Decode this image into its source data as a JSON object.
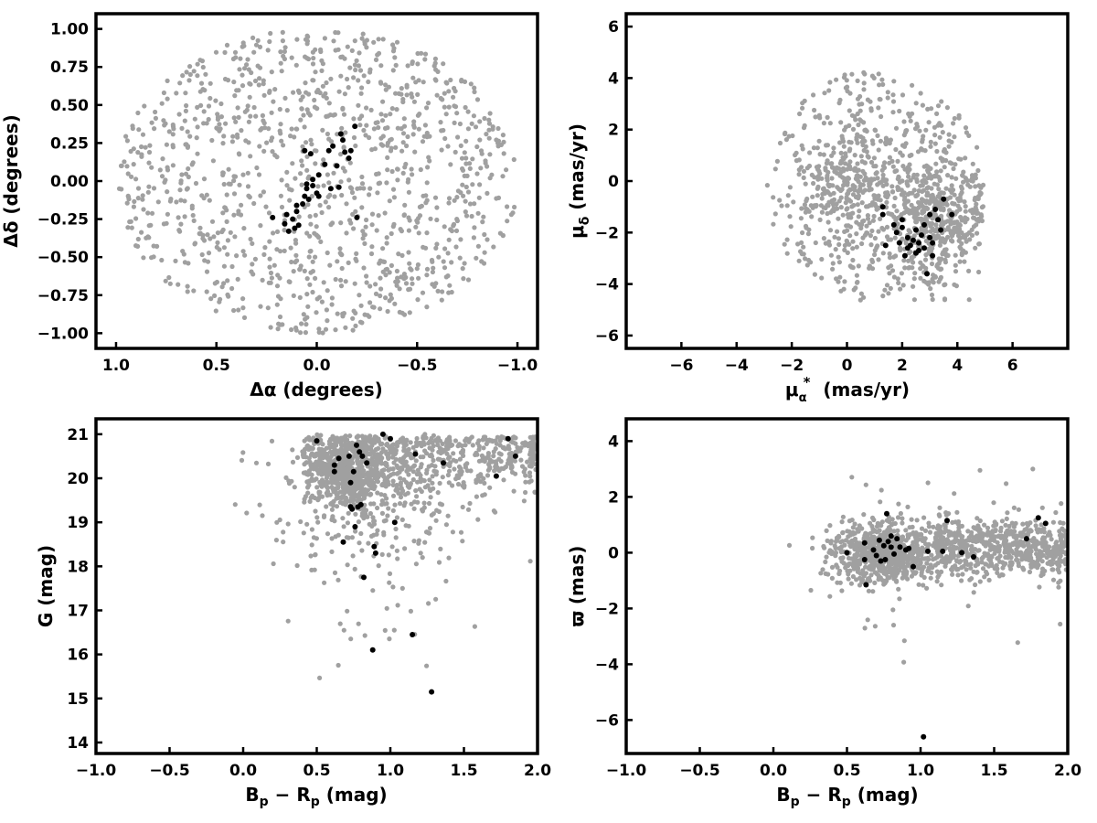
{
  "figure": {
    "panel_count": 4
  },
  "colors": {
    "field_stars": "#a0a0a0",
    "members": "#000000",
    "axes": "#000000",
    "background": "#ffffff"
  },
  "chart_data": [
    {
      "type": "scatter",
      "xlabel": "Δα (degrees)",
      "ylabel": "Δδ (degrees)",
      "xlim": [
        1.1,
        -1.1
      ],
      "ylim": [
        -1.1,
        1.1
      ],
      "x_inverted": true,
      "xticks": [
        1.0,
        0.5,
        0.0,
        -0.5,
        -1.0
      ],
      "xtick_labels": [
        "1.0",
        "0.5",
        "0.0",
        "−0.5",
        "−1.0"
      ],
      "yticks": [
        1.0,
        0.75,
        0.5,
        0.25,
        0.0,
        -0.25,
        -0.5,
        -0.75,
        -1.0
      ],
      "ytick_labels": [
        "1.00",
        "0.75",
        "0.50",
        "0.25",
        "0.00",
        "−0.25",
        "−0.50",
        "−0.75",
        "−1.00"
      ],
      "grid": false,
      "field_generator": {
        "kind": "disk",
        "radius": 1.0,
        "count": 1150
      },
      "series": [
        {
          "role": "field",
          "color": "#a0a0a0",
          "points": []
        },
        {
          "role": "members",
          "color": "#000000",
          "points": [
            [
              0.16,
              -0.28
            ],
            [
              0.15,
              -0.22
            ],
            [
              0.14,
              -0.33
            ],
            [
              0.12,
              -0.25
            ],
            [
              0.11,
              -0.31
            ],
            [
              0.1,
              -0.2
            ],
            [
              0.1,
              -0.16
            ],
            [
              0.09,
              -0.29
            ],
            [
              0.07,
              -0.15
            ],
            [
              0.06,
              -0.1
            ],
            [
              0.05,
              -0.05
            ],
            [
              0.04,
              -0.12
            ],
            [
              0.02,
              -0.03
            ],
            [
              0.0,
              -0.08
            ],
            [
              -0.01,
              -0.1
            ],
            [
              0.02,
              0.01
            ],
            [
              -0.01,
              0.04
            ],
            [
              0.03,
              0.18
            ],
            [
              0.06,
              0.2
            ],
            [
              0.05,
              -0.02
            ],
            [
              -0.04,
              0.11
            ],
            [
              -0.06,
              0.2
            ],
            [
              -0.08,
              0.23
            ],
            [
              -0.1,
              0.1
            ],
            [
              -0.12,
              0.31
            ],
            [
              -0.13,
              0.27
            ],
            [
              -0.14,
              0.19
            ],
            [
              -0.16,
              0.15
            ],
            [
              -0.17,
              0.2
            ],
            [
              -0.19,
              0.36
            ],
            [
              -0.11,
              -0.04
            ],
            [
              -0.2,
              -0.24
            ],
            [
              -0.07,
              -0.05
            ],
            [
              0.22,
              -0.24
            ]
          ]
        }
      ]
    },
    {
      "type": "scatter",
      "xlabel": "μα* (mas/yr)",
      "xlabel_parts": {
        "sym": "μ",
        "sub": "α",
        "sup": "*",
        "rest": "  (mas/yr)"
      },
      "ylabel": "μδ (mas/yr)",
      "ylabel_parts": {
        "sym": "μ",
        "sub": "δ",
        "rest": " (mas/yr)"
      },
      "xlim": [
        -8,
        8
      ],
      "ylim": [
        -6.5,
        6.5
      ],
      "x_inverted": true,
      "xticks": [
        -6,
        -4,
        -2,
        0,
        2,
        4,
        6
      ],
      "xtick_labels": [
        "−6",
        "−4",
        "−2",
        "0",
        "2",
        "4",
        "6"
      ],
      "yticks": [
        6,
        4,
        2,
        0,
        -2,
        -4,
        -6
      ],
      "ytick_labels": [
        "6",
        "4",
        "2",
        "0",
        "−2",
        "−4",
        "−6"
      ],
      "grid": false,
      "field_generator": {
        "kind": "pm-blob",
        "count": 1150
      },
      "series": [
        {
          "role": "field",
          "color": "#a0a0a0",
          "points": []
        },
        {
          "role": "members",
          "color": "#000000",
          "points": [
            [
              1.3,
              -1.0
            ],
            [
              1.3,
              -1.3
            ],
            [
              1.4,
              -2.5
            ],
            [
              1.7,
              -1.7
            ],
            [
              1.8,
              -2.0
            ],
            [
              1.9,
              -2.4
            ],
            [
              2.0,
              -1.8
            ],
            [
              2.1,
              -2.9
            ],
            [
              2.2,
              -2.2
            ],
            [
              2.3,
              -2.5
            ],
            [
              2.4,
              -2.3
            ],
            [
              2.5,
              -2.8
            ],
            [
              2.5,
              -1.9
            ],
            [
              2.6,
              -2.4
            ],
            [
              2.7,
              -2.1
            ],
            [
              2.8,
              -2.6
            ],
            [
              2.9,
              -3.6
            ],
            [
              3.0,
              -2.2
            ],
            [
              3.0,
              -1.3
            ],
            [
              3.1,
              -2.9
            ],
            [
              3.2,
              -1.1
            ],
            [
              3.3,
              -1.5
            ],
            [
              3.4,
              -1.9
            ],
            [
              3.5,
              -0.7
            ],
            [
              3.8,
              -1.3
            ],
            [
              2.0,
              -1.5
            ],
            [
              2.6,
              -2.7
            ],
            [
              3.1,
              -2.4
            ],
            [
              2.2,
              -2.6
            ],
            [
              2.8,
              -1.7
            ]
          ]
        }
      ]
    },
    {
      "type": "scatter",
      "xlabel": "Bp − Rp (mag)",
      "xlabel_parts": {
        "a": "B",
        "a_sub": "p",
        "op": " − ",
        "b": "R",
        "b_sub": "p",
        "rest": " (mag)"
      },
      "ylabel": "G (mag)",
      "xlim": [
        -1.0,
        2.0
      ],
      "ylim": [
        13.75,
        21.35
      ],
      "y_inverted": false,
      "xticks": [
        -1.0,
        -0.5,
        0.0,
        0.5,
        1.0,
        1.5,
        2.0
      ],
      "xtick_labels": [
        "−1.0",
        "−0.5",
        "0.0",
        "0.5",
        "1.0",
        "1.5",
        "2.0"
      ],
      "yticks": [
        14,
        15,
        16,
        17,
        18,
        19,
        20,
        21
      ],
      "ytick_labels": [
        "14",
        "15",
        "16",
        "17",
        "18",
        "19",
        "20",
        "21"
      ],
      "grid": false,
      "field_generator": {
        "kind": "cmd",
        "count": 1400
      },
      "series": [
        {
          "role": "field",
          "color": "#a0a0a0",
          "points": []
        },
        {
          "role": "members",
          "color": "#000000",
          "points": [
            [
              0.5,
              20.85
            ],
            [
              0.62,
              20.3
            ],
            [
              0.62,
              20.15
            ],
            [
              0.65,
              20.45
            ],
            [
              0.68,
              18.55
            ],
            [
              0.72,
              20.5
            ],
            [
              0.73,
              19.35
            ],
            [
              0.73,
              19.9
            ],
            [
              0.74,
              19.3
            ],
            [
              0.75,
              20.15
            ],
            [
              0.76,
              18.9
            ],
            [
              0.77,
              20.75
            ],
            [
              0.78,
              19.35
            ],
            [
              0.79,
              20.6
            ],
            [
              0.8,
              19.4
            ],
            [
              0.81,
              20.5
            ],
            [
              0.82,
              17.75
            ],
            [
              0.84,
              20.35
            ],
            [
              0.88,
              16.1
            ],
            [
              0.89,
              18.45
            ],
            [
              0.9,
              18.3
            ],
            [
              0.95,
              21.0
            ],
            [
              1.0,
              20.9
            ],
            [
              1.03,
              19.0
            ],
            [
              1.15,
              16.45
            ],
            [
              1.17,
              20.55
            ],
            [
              1.28,
              15.15
            ],
            [
              1.36,
              20.35
            ],
            [
              1.72,
              20.05
            ],
            [
              1.8,
              20.9
            ],
            [
              1.85,
              20.5
            ]
          ]
        }
      ]
    },
    {
      "type": "scatter",
      "xlabel": "Bp − Rp (mag)",
      "xlabel_parts": {
        "a": "B",
        "a_sub": "p",
        "op": " − ",
        "b": "R",
        "b_sub": "p",
        "rest": " (mag)"
      },
      "ylabel": "ϖ (mas)",
      "xlim": [
        -1.0,
        2.0
      ],
      "ylim": [
        -7.2,
        4.8
      ],
      "xticks": [
        -1.0,
        -0.5,
        0.0,
        0.5,
        1.0,
        1.5,
        2.0
      ],
      "xtick_labels": [
        "−1.0",
        "−0.5",
        "0.0",
        "0.5",
        "1.0",
        "1.5",
        "2.0"
      ],
      "yticks": [
        4,
        2,
        0,
        -2,
        -4,
        -6
      ],
      "ytick_labels": [
        "4",
        "2",
        "0",
        "−2",
        "−4",
        "−6"
      ],
      "grid": false,
      "field_generator": {
        "kind": "parallax",
        "count": 1400
      },
      "series": [
        {
          "role": "field",
          "color": "#a0a0a0",
          "points": []
        },
        {
          "role": "members",
          "color": "#000000",
          "points": [
            [
              0.5,
              0.0
            ],
            [
              0.62,
              0.35
            ],
            [
              0.62,
              -0.25
            ],
            [
              0.63,
              -1.15
            ],
            [
              0.68,
              0.1
            ],
            [
              0.7,
              -0.1
            ],
            [
              0.72,
              0.45
            ],
            [
              0.73,
              -0.3
            ],
            [
              0.75,
              0.25
            ],
            [
              0.76,
              -0.25
            ],
            [
              0.77,
              1.4
            ],
            [
              0.78,
              0.4
            ],
            [
              0.8,
              0.2
            ],
            [
              0.8,
              0.6
            ],
            [
              0.82,
              -0.05
            ],
            [
              0.84,
              0.5
            ],
            [
              0.86,
              0.2
            ],
            [
              0.9,
              0.1
            ],
            [
              0.92,
              0.15
            ],
            [
              0.95,
              -0.5
            ],
            [
              1.02,
              -6.6
            ],
            [
              1.05,
              0.05
            ],
            [
              1.15,
              0.05
            ],
            [
              1.18,
              1.15
            ],
            [
              1.28,
              0.0
            ],
            [
              1.36,
              -0.15
            ],
            [
              1.72,
              0.5
            ],
            [
              1.8,
              1.25
            ],
            [
              1.85,
              1.05
            ]
          ]
        }
      ]
    }
  ]
}
